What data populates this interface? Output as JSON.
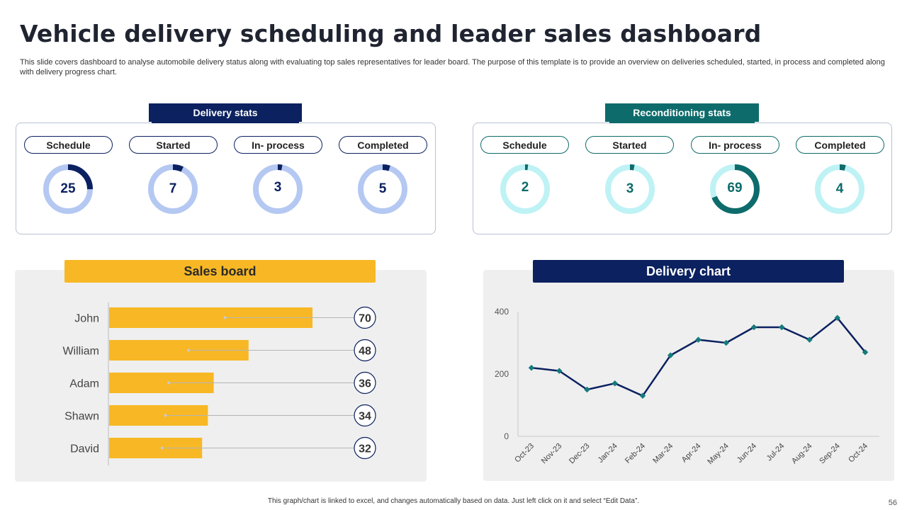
{
  "page": {
    "title": "Vehicle delivery scheduling and leader sales dashboard",
    "subtitle": "This slide covers dashboard to analyse automobile delivery status along with evaluating top sales representatives for leader board. The purpose of this template is to provide an overview on deliveries scheduled, started, in process and completed along with delivery progress chart.",
    "footer": "This graph/chart is linked to excel, and changes automatically based on data. Just left click on it and select “Edit Data”.",
    "page_number": "56"
  },
  "colors": {
    "navy": "#0b2160",
    "teal": "#0e6b6b",
    "light_blue": "#b4c8f2",
    "light_teal": "#bff2f5",
    "gold": "#f8b825"
  },
  "delivery_stats": {
    "label": "Delivery stats",
    "items": [
      {
        "label": "Schedule",
        "value": 25,
        "fraction": 0.25
      },
      {
        "label": "Started",
        "value": 7,
        "fraction": 0.07
      },
      {
        "label": "In- process",
        "value": 3,
        "fraction": 0.03
      },
      {
        "label": "Completed",
        "value": 5,
        "fraction": 0.05
      }
    ]
  },
  "reconditioning_stats": {
    "label": "Reconditioning stats",
    "items": [
      {
        "label": "Schedule",
        "value": 2,
        "fraction": 0.02
      },
      {
        "label": "Started",
        "value": 3,
        "fraction": 0.03
      },
      {
        "label": "In- process",
        "value": 69,
        "fraction": 0.69
      },
      {
        "label": "Completed",
        "value": 4,
        "fraction": 0.04
      }
    ]
  },
  "sales_board": {
    "label": "Sales board"
  },
  "delivery_chart": {
    "label": "Delivery chart"
  },
  "chart_data": [
    {
      "type": "bar",
      "orientation": "horizontal",
      "title": "Sales board",
      "categories": [
        "John",
        "William",
        "Adam",
        "Shawn",
        "David"
      ],
      "values": [
        70,
        48,
        36,
        34,
        32
      ],
      "xlim": [
        0,
        100
      ]
    },
    {
      "type": "line",
      "title": "Delivery chart",
      "categories": [
        "Oct-23",
        "Nov-23",
        "Dec-23",
        "Jan-24",
        "Feb-24",
        "Mar-24",
        "Apr-24",
        "May-24",
        "Jun-24",
        "Jul-24",
        "Aug-24",
        "Sep-24",
        "Oct-24"
      ],
      "values": [
        220,
        210,
        150,
        170,
        130,
        260,
        310,
        300,
        350,
        350,
        310,
        380,
        270
      ],
      "yticks": [
        0,
        200,
        400
      ],
      "ylim": [
        0,
        400
      ]
    }
  ]
}
